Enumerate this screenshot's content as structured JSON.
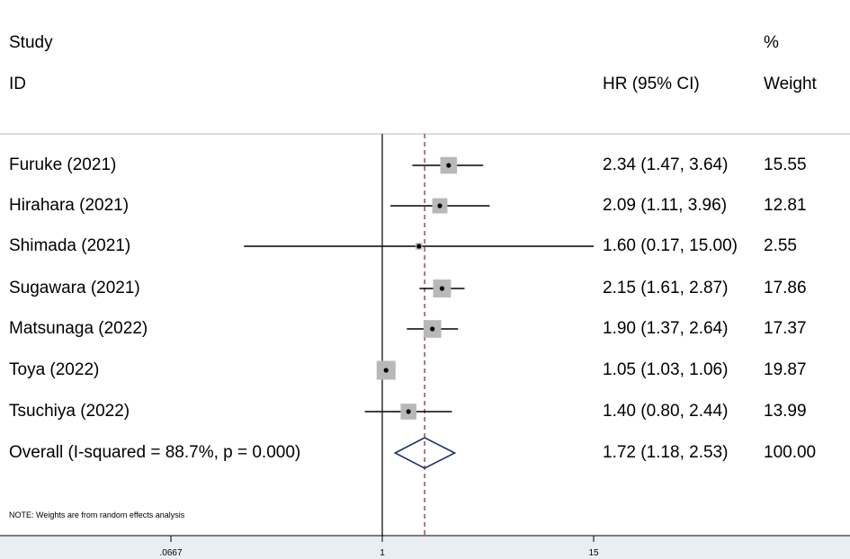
{
  "header": {
    "study_line1": "Study",
    "study_line2": "ID",
    "hr_label": "HR (95% CI)",
    "weight_line1": "%",
    "weight_line2": "Weight"
  },
  "note": "NOTE: Weights are from random effects analysis",
  "chart_data": {
    "type": "forest",
    "xscale": "log",
    "x_ticks": [
      ".0667",
      "1",
      "15"
    ],
    "null_line": 1,
    "studies": [
      {
        "label": "Furuke (2021)",
        "hr": 2.34,
        "lo": 1.47,
        "hi": 3.64,
        "ci_text": "2.34 (1.47, 3.64)",
        "weight": 15.55,
        "weight_text": "15.55"
      },
      {
        "label": "Hirahara (2021)",
        "hr": 2.09,
        "lo": 1.11,
        "hi": 3.96,
        "ci_text": "2.09 (1.11, 3.96)",
        "weight": 12.81,
        "weight_text": "12.81"
      },
      {
        "label": "Shimada (2021)",
        "hr": 1.6,
        "lo": 0.17,
        "hi": 15.0,
        "ci_text": "1.60 (0.17, 15.00)",
        "weight": 2.55,
        "weight_text": "2.55"
      },
      {
        "label": "Sugawara (2021)",
        "hr": 2.15,
        "lo": 1.61,
        "hi": 2.87,
        "ci_text": "2.15 (1.61, 2.87)",
        "weight": 17.86,
        "weight_text": "17.86"
      },
      {
        "label": "Matsunaga (2022)",
        "hr": 1.9,
        "lo": 1.37,
        "hi": 2.64,
        "ci_text": "1.90 (1.37, 2.64)",
        "weight": 17.37,
        "weight_text": "17.37"
      },
      {
        "label": "Toya (2022)",
        "hr": 1.05,
        "lo": 1.03,
        "hi": 1.06,
        "ci_text": "1.05 (1.03, 1.06)",
        "weight": 19.87,
        "weight_text": "19.87"
      },
      {
        "label": "Tsuchiya (2022)",
        "hr": 1.4,
        "lo": 0.8,
        "hi": 2.44,
        "ci_text": "1.40 (0.80, 2.44)",
        "weight": 13.99,
        "weight_text": "13.99"
      }
    ],
    "overall": {
      "label": "Overall  (I-squared = 88.7%, p = 0.000)",
      "hr": 1.72,
      "lo": 1.18,
      "hi": 2.53,
      "ci_text": "1.72 (1.18, 2.53)",
      "weight_text": "100.00"
    },
    "colors": {
      "box": "#b8b8b8",
      "diamond": "#1f2f6b",
      "overall_line": "#8b1a1a",
      "separator": "#bbbbbb"
    }
  }
}
